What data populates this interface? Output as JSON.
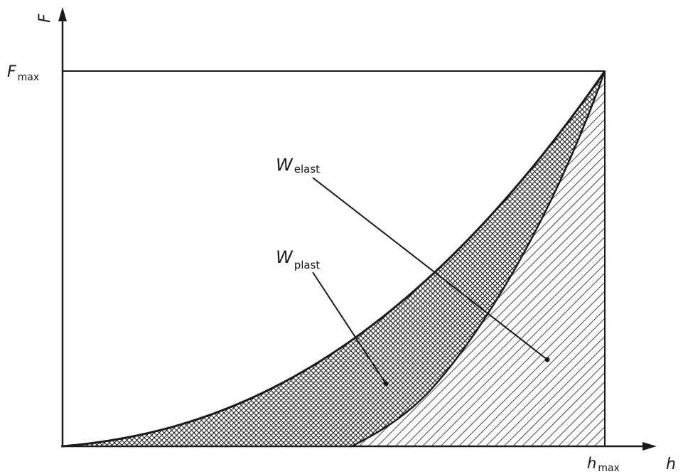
{
  "diagram": {
    "axis_y_label": "F",
    "axis_x_label": "h",
    "f_max": {
      "main": "F",
      "sub": "max"
    },
    "h_max": {
      "main": "h",
      "sub": "max"
    },
    "w_elast": {
      "main": "W",
      "sub": "elast"
    },
    "w_plast": {
      "main": "W",
      "sub": "plast"
    },
    "colors": {
      "ink": "#1a1a1a",
      "background": "#ffffff"
    }
  }
}
